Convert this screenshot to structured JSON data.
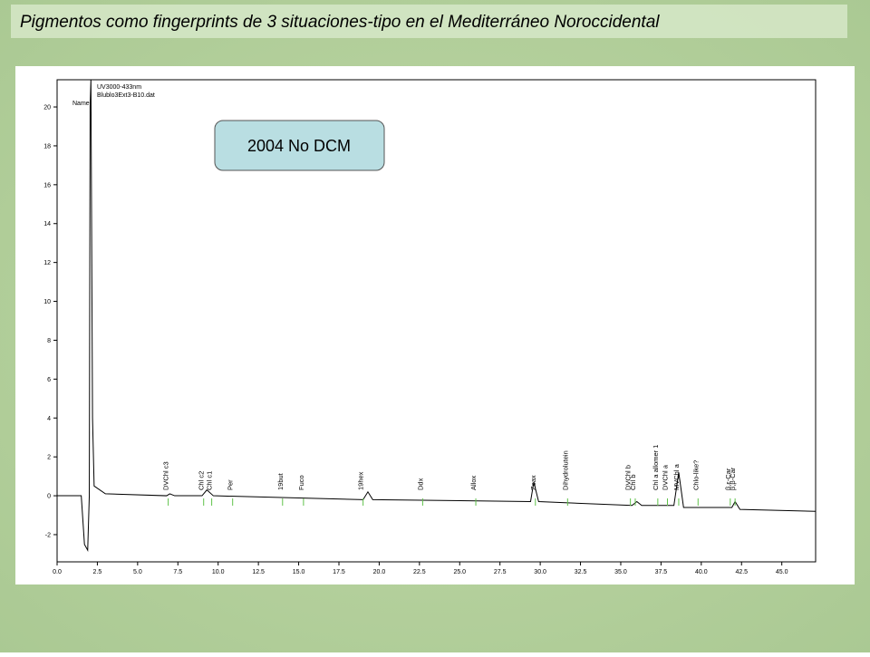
{
  "title": "Pigmentos como fingerprints de 3 situaciones-tipo en el Mediterráneo Noroccidental",
  "callout": "2004 No DCM",
  "chart_data": {
    "type": "line",
    "header_lines": [
      "UV3000-433nm",
      "Blublo3Ext3-B10.dat",
      "Name"
    ],
    "color": "#000000",
    "x": [
      0,
      1.5,
      1.7,
      1.9,
      2.0,
      2.05,
      2.1,
      2.2,
      2.3,
      3.0,
      6.8,
      7.0,
      7.3,
      9.0,
      9.3,
      9.7,
      19.0,
      19.3,
      19.6,
      29.4,
      29.6,
      29.9,
      35.7,
      36.0,
      36.3,
      38.3,
      38.6,
      38.9,
      41.9,
      42.1,
      42.4,
      47.1
    ],
    "values": [
      0,
      0,
      -2.5,
      -2.8,
      0,
      20,
      21.4,
      4,
      0.5,
      0.1,
      0,
      0.1,
      0,
      0,
      0.3,
      0,
      -0.2,
      0.2,
      -0.2,
      -0.3,
      0.7,
      -0.3,
      -0.5,
      -0.3,
      -0.5,
      -0.5,
      1.2,
      -0.6,
      -0.6,
      -0.3,
      -0.7,
      -0.8
    ],
    "xlim": [
      0,
      47.1
    ],
    "ylim": [
      -3.4,
      21.4
    ],
    "xticks": [
      {
        "value": 0,
        "label": "0.0"
      },
      2.5,
      {
        "value": 5,
        "label": "5.0"
      },
      7.5,
      {
        "value": 10,
        "label": "10.0"
      },
      12.5,
      {
        "value": 15,
        "label": "15.0"
      },
      17.5,
      {
        "value": 20,
        "label": "20.0"
      },
      22.5,
      {
        "value": 25,
        "label": "25.0"
      },
      27.5,
      {
        "value": 30,
        "label": "30.0"
      },
      32.5,
      {
        "value": 35,
        "label": "35.0"
      },
      37.5,
      {
        "value": 40,
        "label": "40.0"
      },
      42.5,
      {
        "value": 45,
        "label": "45.0"
      }
    ],
    "yticks": [
      -2,
      0,
      2,
      4,
      6,
      8,
      10,
      12,
      14,
      16,
      18,
      20
    ],
    "peaks": [
      {
        "label": "DVChl c3",
        "x": 6.9
      },
      {
        "label": "Chl c2",
        "x": 9.1
      },
      {
        "label": "Chl c1",
        "x": 9.6
      },
      {
        "label": "Per",
        "x": 10.9
      },
      {
        "label": "19but",
        "x": 14.0
      },
      {
        "label": "Fuco",
        "x": 15.3
      },
      {
        "label": "19hex",
        "x": 19.0
      },
      {
        "label": "Ddx",
        "x": 22.7
      },
      {
        "label": "Allox",
        "x": 26.0
      },
      {
        "label": "Zeax",
        "x": 29.7
      },
      {
        "label": "Dihydrolutein",
        "x": 31.7
      },
      {
        "label": "DVChl b",
        "x": 35.6
      },
      {
        "label": "Chl b",
        "x": 35.9
      },
      {
        "label": "Chl a allomer 1",
        "x": 37.3
      },
      {
        "label": "DVChl a",
        "x": 37.9
      },
      {
        "label": "MVChl a",
        "x": 38.6
      },
      {
        "label": "Chlo-like?",
        "x": 39.8
      },
      {
        "label": "β,ε-Car",
        "x": 41.8
      },
      {
        "label": "β,β-Car",
        "x": 42.1
      }
    ]
  }
}
